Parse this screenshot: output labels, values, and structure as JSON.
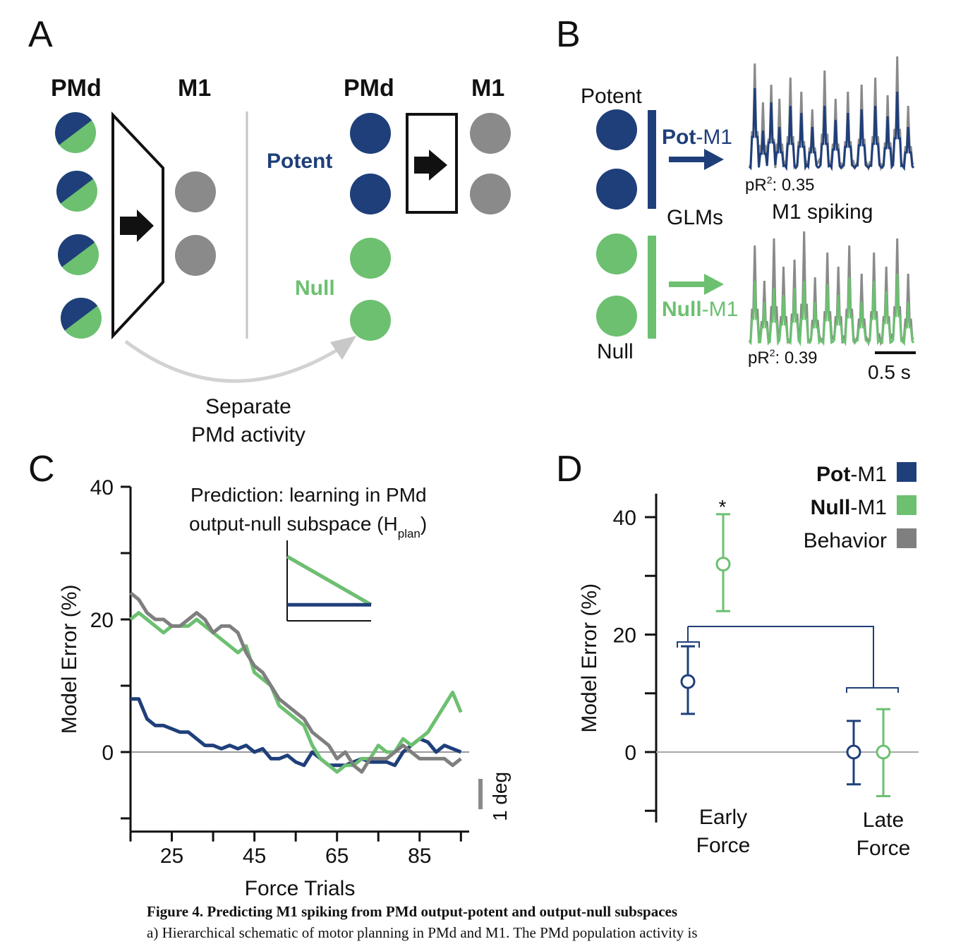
{
  "colors": {
    "potent": "#1f3f7a",
    "null": "#6cc070",
    "behavior": "#7f7f7f",
    "neutral": "#8a8a8a",
    "ink": "#111111"
  },
  "panel_a": {
    "letter": "A",
    "left_pmd": "PMd",
    "left_m1": "M1",
    "right_pmd": "PMd",
    "right_m1": "M1",
    "potent_label": "Potent",
    "null_label": "Null",
    "separate_line1": "Separate",
    "separate_line2": "PMd activity",
    "icons": [
      "mixed-neuron-icon",
      "arrow-right-icon",
      "curved-arrow-icon"
    ]
  },
  "panel_b": {
    "letter": "B",
    "potent_label": "Potent",
    "null_label": "Null",
    "pot_arrow_bold": "Pot",
    "pot_arrow_rest": "-M1",
    "null_arrow_bold": "Null",
    "null_arrow_rest": "-M1",
    "glms": "GLMs",
    "m1_spiking": "M1 spiking",
    "pr2_pot_prefix": "pR",
    "pr2_pot_sup": "2",
    "pr2_pot_value": ": 0.35",
    "pr2_null_prefix": "pR",
    "pr2_null_sup": "2",
    "pr2_null_value": ": 0.39",
    "scalebar": "0.5 s"
  },
  "panel_c": {
    "letter": "C",
    "prediction_line1": "Prediction: learning in PMd",
    "prediction_line2": "output-null subspace (H",
    "prediction_sub": "plan",
    "prediction_close": ")",
    "scalebar": "1 deg"
  },
  "panel_d": {
    "letter": "D",
    "legend": [
      {
        "bold": "Pot",
        "rest": "-M1",
        "color": "#1f3f7a"
      },
      {
        "bold": "Null",
        "rest": "-M1",
        "color": "#6cc070"
      },
      {
        "bold": "",
        "rest": "Behavior",
        "color": "#7f7f7f"
      }
    ],
    "significance": "*",
    "early_line1": "Early",
    "early_line2": "Force",
    "late_line1": "Late",
    "late_line2": "Force"
  },
  "chart_data": [
    {
      "type": "line",
      "panel": "C",
      "xlabel": "Force Trials",
      "ylabel": "Model Error (%)",
      "ylim": [
        -12,
        40
      ],
      "xlim": [
        15,
        97
      ],
      "yticks": [
        0,
        20,
        40
      ],
      "xticks": [
        25,
        45,
        65,
        85
      ],
      "series": [
        {
          "key": "potent",
          "x": [
            15,
            17,
            19,
            21,
            23,
            25,
            27,
            29,
            31,
            33,
            35,
            37,
            39,
            41,
            43,
            45,
            47,
            49,
            51,
            53,
            55,
            57,
            59,
            61,
            63,
            65,
            67,
            69,
            71,
            73,
            75,
            77,
            79,
            81,
            83,
            85,
            87,
            89,
            91,
            93,
            95
          ],
          "values": [
            8,
            8,
            5,
            4,
            4,
            3.5,
            3,
            3,
            2,
            1,
            1,
            0.5,
            1,
            0.5,
            1,
            0,
            0.5,
            -1,
            -1,
            -0.5,
            -1.5,
            -2,
            0,
            -1,
            -2,
            -2,
            -2,
            -1.5,
            -1,
            -1.5,
            -1.5,
            -1.5,
            -2,
            0,
            1,
            2,
            1.5,
            0,
            1,
            0.5,
            0
          ]
        },
        {
          "key": "null",
          "x": [
            15,
            17,
            19,
            21,
            23,
            25,
            27,
            29,
            31,
            33,
            35,
            37,
            39,
            41,
            43,
            45,
            47,
            49,
            51,
            53,
            55,
            57,
            59,
            61,
            63,
            65,
            67,
            69,
            71,
            73,
            75,
            77,
            79,
            81,
            83,
            85,
            87,
            89,
            91,
            93,
            95
          ],
          "values": [
            20,
            21,
            20,
            19,
            18,
            19,
            19,
            19,
            20,
            19,
            18,
            17,
            16,
            15,
            16,
            12,
            11,
            10,
            7,
            6,
            5,
            4,
            1,
            -1,
            -2,
            -3,
            -2,
            -2,
            -1,
            -1,
            1,
            0,
            0,
            2,
            1,
            2,
            3,
            5,
            7,
            9,
            6
          ]
        },
        {
          "key": "behavior",
          "x": [
            15,
            17,
            19,
            21,
            23,
            25,
            27,
            29,
            31,
            33,
            35,
            37,
            39,
            41,
            43,
            45,
            47,
            49,
            51,
            53,
            55,
            57,
            59,
            61,
            63,
            65,
            67,
            69,
            71,
            73,
            75,
            77,
            79,
            81,
            83,
            85,
            87,
            89,
            91,
            93,
            95
          ],
          "values": [
            24,
            23,
            21,
            20,
            20,
            19,
            19,
            20,
            21,
            20,
            18,
            19,
            19,
            18,
            15,
            13,
            12,
            10,
            8,
            7,
            6,
            5,
            3,
            2,
            1,
            -1,
            0,
            -2,
            -3,
            -1,
            -1,
            -1,
            0,
            1,
            0,
            -1,
            -1,
            -1,
            -1,
            -2,
            -1
          ]
        }
      ],
      "inset": {
        "series": [
          {
            "key": "behavior",
            "values": [
              0.8,
              0.2
            ]
          },
          {
            "key": "null",
            "values": [
              0.8,
              0.2
            ]
          },
          {
            "key": "potent",
            "values": [
              0.2,
              0.2
            ]
          }
        ]
      }
    },
    {
      "type": "scatter",
      "panel": "D",
      "ylabel": "Model Error (%)",
      "ylim": [
        -12,
        44
      ],
      "yticks": [
        0,
        20,
        40
      ],
      "categories": [
        "Early Force",
        "Late Force"
      ],
      "series": [
        {
          "name": "Pot-M1",
          "key": "potent",
          "values": [
            12,
            0
          ],
          "err_low": [
            6.5,
            -5.5
          ],
          "err_high": [
            18,
            5.3
          ]
        },
        {
          "name": "Null-M1",
          "key": "null",
          "values": [
            32,
            0
          ],
          "err_low": [
            24,
            -7.5
          ],
          "err_high": [
            40.5,
            7.3
          ]
        }
      ]
    }
  ],
  "caption": {
    "title": "Figure 4. Predicting M1 spiking from PMd output-potent and output-null subspaces",
    "text": "a) Hierarchical schematic of motor planning in PMd and M1. The PMd population activity is"
  }
}
